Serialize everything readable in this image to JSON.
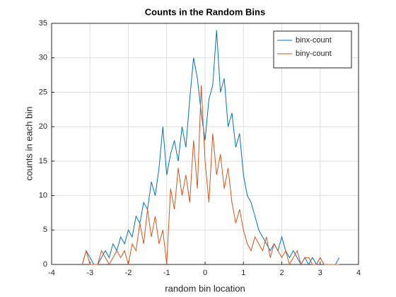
{
  "chart_data": {
    "type": "line",
    "title": "Counts in the Random Bins",
    "xlabel": "random bin location",
    "ylabel": "counts in each bin",
    "x": [
      -3.2,
      -3.1,
      -3.0,
      -2.9,
      -2.8,
      -2.7,
      -2.6,
      -2.5,
      -2.4,
      -2.3,
      -2.2,
      -2.1,
      -2.0,
      -1.9,
      -1.8,
      -1.7,
      -1.6,
      -1.5,
      -1.4,
      -1.3,
      -1.2,
      -1.1,
      -1.0,
      -0.9,
      -0.8,
      -0.7,
      -0.6,
      -0.5,
      -0.4,
      -0.3,
      -0.2,
      -0.1,
      0.0,
      0.1,
      0.2,
      0.3,
      0.4,
      0.5,
      0.6,
      0.7,
      0.8,
      0.9,
      1.0,
      1.1,
      1.2,
      1.3,
      1.4,
      1.5,
      1.6,
      1.7,
      1.8,
      1.9,
      2.0,
      2.1,
      2.2,
      2.3,
      2.4,
      2.5,
      2.6,
      2.7,
      2.8,
      2.9,
      3.0,
      3.1,
      3.2,
      3.3,
      3.4,
      3.5
    ],
    "series": [
      {
        "name": "binx-count",
        "color": "#0072bd",
        "values": [
          0,
          2,
          1,
          0,
          0,
          1,
          2,
          1,
          3,
          2,
          4,
          3,
          5,
          4,
          7,
          6,
          9,
          8,
          12,
          10,
          14,
          20,
          13,
          16,
          18,
          15,
          20,
          17,
          24,
          30,
          27,
          22,
          18,
          24,
          26,
          34,
          25,
          27,
          20,
          22,
          17,
          19,
          13,
          10,
          9,
          7,
          5,
          4,
          3,
          2,
          3,
          2,
          4,
          2,
          1,
          2,
          1,
          0,
          1,
          0,
          1,
          0,
          1,
          0,
          0,
          0,
          0,
          1
        ]
      },
      {
        "name": "biny-count",
        "color": "#d95319",
        "values": [
          0,
          2,
          0,
          0,
          0,
          2,
          1,
          0,
          1,
          2,
          1,
          2,
          0,
          3,
          2,
          6,
          3,
          8,
          4,
          7,
          3,
          5,
          0,
          11,
          8,
          14,
          10,
          13,
          9,
          18,
          11,
          26,
          15,
          9,
          19,
          13,
          16,
          11,
          14,
          9,
          6,
          8,
          5,
          3,
          2,
          4,
          3,
          2,
          4,
          1,
          3,
          2,
          1,
          2,
          0,
          1,
          2,
          0,
          1,
          1,
          0,
          0,
          1,
          0,
          0,
          0,
          0,
          0
        ]
      }
    ],
    "xlim": [
      -4,
      4
    ],
    "xticks": [
      -4,
      -3,
      -2,
      -1,
      0,
      1,
      2,
      3,
      4
    ],
    "ylim": [
      0,
      35
    ],
    "yticks": [
      0,
      5,
      10,
      15,
      20,
      25,
      30,
      35
    ],
    "grid": true,
    "legend": "northeast"
  }
}
